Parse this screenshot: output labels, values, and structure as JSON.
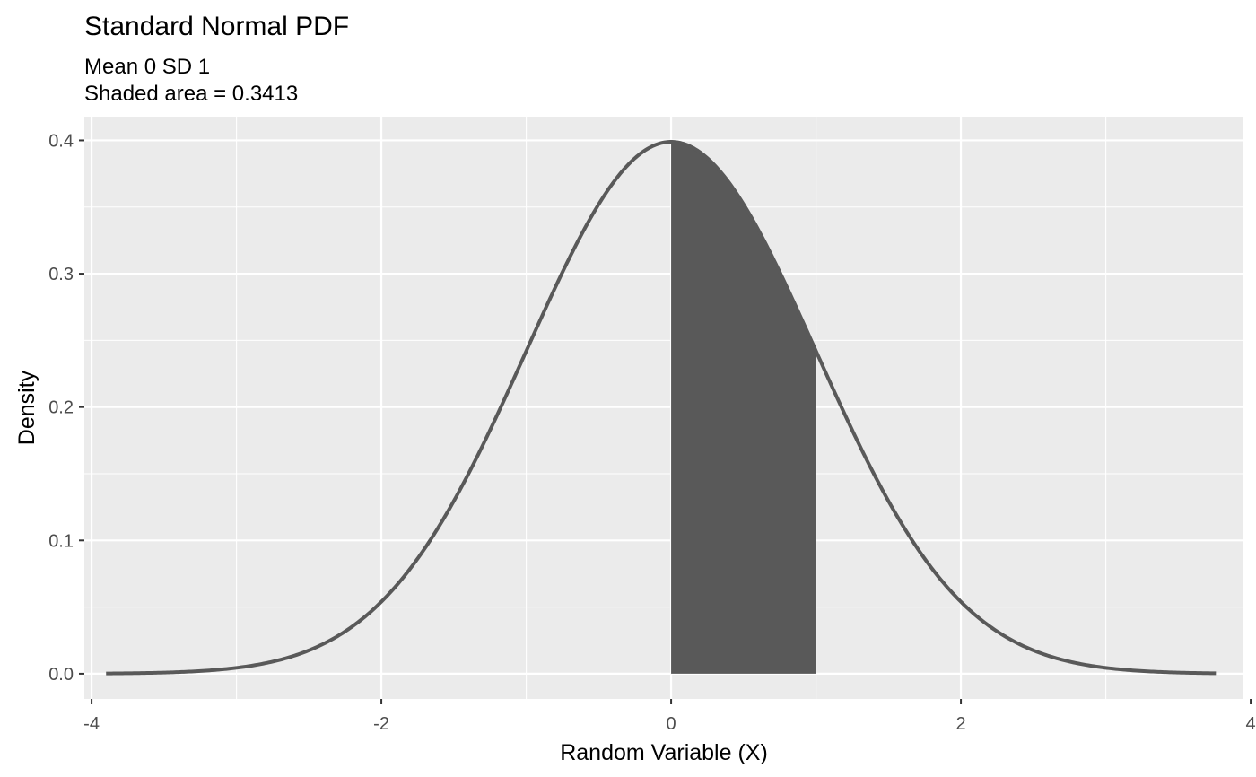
{
  "chart_data": {
    "type": "area",
    "title": "Standard Normal PDF",
    "subtitle_lines": [
      "Mean 0 SD 1",
      "Shaded area = 0.3413"
    ],
    "xlabel": "Random Variable (X)",
    "ylabel": "Density",
    "mean": 0,
    "sd": 1,
    "xlim": [
      -4.05,
      3.95
    ],
    "ylim": [
      -0.0189,
      0.4178
    ],
    "curve_range": [
      -3.9,
      3.76
    ],
    "shade_range": [
      0,
      1
    ],
    "shaded_area": 0.3413,
    "x_ticks": [
      {
        "value": -4,
        "label": "-4"
      },
      {
        "value": -2,
        "label": "-2"
      },
      {
        "value": 0,
        "label": "0"
      },
      {
        "value": 2,
        "label": "2"
      },
      {
        "value": 4,
        "label": "4"
      }
    ],
    "y_ticks": [
      {
        "value": 0.0,
        "label": "0.0"
      },
      {
        "value": 0.1,
        "label": "0.1"
      },
      {
        "value": 0.2,
        "label": "0.2"
      },
      {
        "value": 0.3,
        "label": "0.3"
      },
      {
        "value": 0.4,
        "label": "0.4"
      }
    ],
    "grid": true,
    "legend": "none",
    "colors": {
      "panel": "#EBEBEB",
      "grid": "#FFFFFF",
      "curve": "#595959",
      "fill": "#595959",
      "tick_text": "#4D4D4D"
    }
  }
}
